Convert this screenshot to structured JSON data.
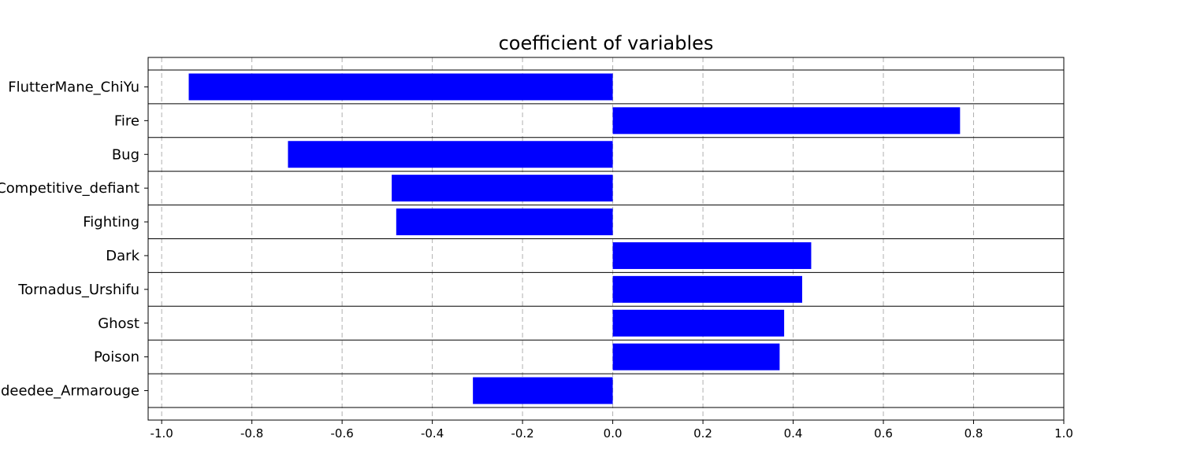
{
  "chart_data": {
    "type": "bar",
    "orientation": "horizontal",
    "title": "coefficient of variables",
    "xlabel": "",
    "ylabel": "",
    "categories": [
      "FlutterMane_ChiYu",
      "Fire",
      "Bug",
      "Competitive_defiant",
      "Fighting",
      "Dark",
      "Tornadus_Urshifu",
      "Ghost",
      "Poison",
      "Indeedee_Armarouge"
    ],
    "values": [
      -0.94,
      0.77,
      -0.72,
      -0.49,
      -0.48,
      0.44,
      0.42,
      0.38,
      0.37,
      -0.31
    ],
    "xlim": [
      -1.03,
      1.0
    ],
    "xticks": [
      -1.0,
      -0.8,
      -0.6,
      -0.4,
      -0.2,
      0.0,
      0.2,
      0.4,
      0.6,
      0.8,
      1.0
    ],
    "xtick_labels": [
      "-1.0",
      "-0.8",
      "-0.6",
      "-0.4",
      "-0.2",
      "0.0",
      "0.2",
      "0.4",
      "0.6",
      "0.8",
      "1.0"
    ],
    "grid": "vertical-dashed",
    "colors": {
      "bar": "#0000ff",
      "grid": "#b0b0b0",
      "axis": "#000000"
    }
  }
}
